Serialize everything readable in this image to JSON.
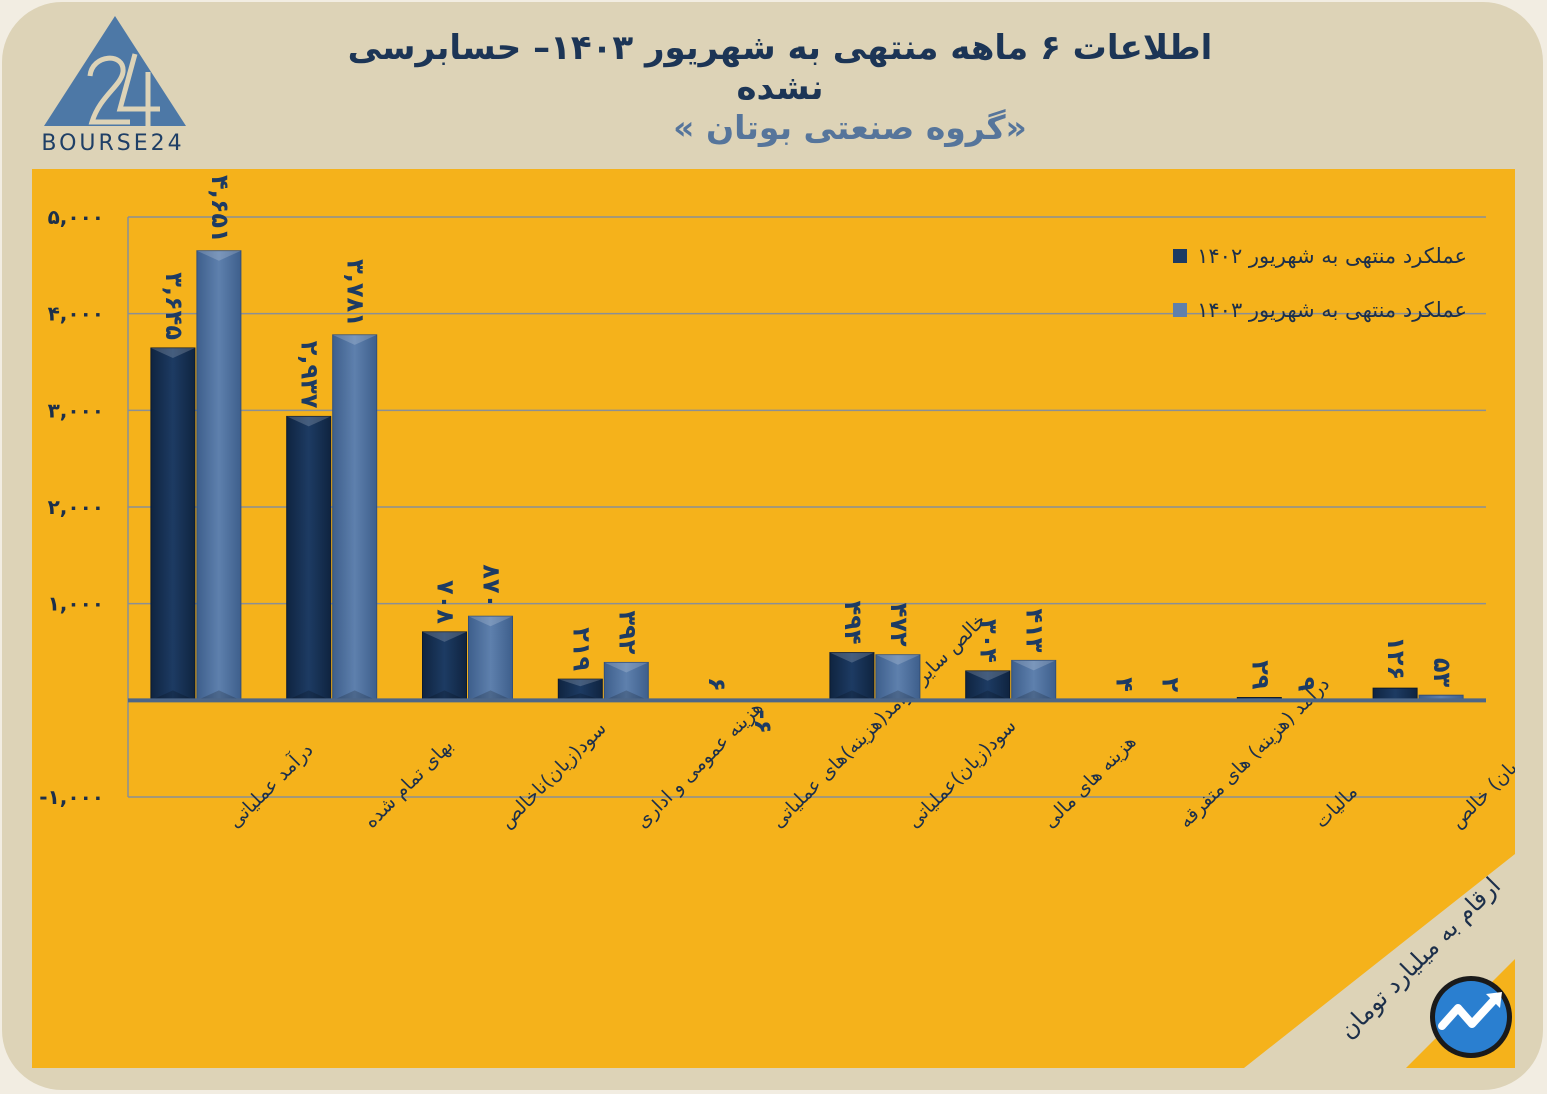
{
  "header": {
    "title": "اطلاعات ۶ ماهه منتهی به شهریور ۱۴۰۳– حسابرسی نشده",
    "subtitle": "«گروه صنعتی بوتان »"
  },
  "logo": {
    "text": "BOURSE24"
  },
  "unit_note": "ارقام به میلیارد تومان",
  "colors": {
    "background": "#ddd3b7",
    "panel": "#f5b21b",
    "series_1402": "#1d3b63",
    "series_1403": "#5e80ad",
    "title": "#1c3556",
    "subtitle": "#56759b"
  },
  "chart_data": {
    "type": "bar",
    "categories": [
      "درآمد عملیاتی",
      "بهای تمام شده",
      "سود(زیان)ناخالص",
      "هزینه عمومی و اداری",
      "خالص سایر درامد(هزینه)های عملیاتی",
      "سود(زیان)عملیاتی",
      "هزینه های مالی",
      "درآمد (هزینه) های متفرقه",
      "مالیات",
      "سود(زیان) خالص"
    ],
    "series": [
      {
        "name": "عملکرد منتهی به شهریور ۱۴۰۲",
        "values": [
          3645,
          2937,
          708,
          219,
          6,
          494,
          304,
          4,
          29,
          126
        ],
        "labels": [
          "۳,۶۴۵",
          "۲,۹۳۷",
          "۷۰۸",
          "۲۱۹",
          "۶",
          "۴۹۴",
          "۳۰۴",
          "۴",
          "۲۹",
          "۱۲۶"
        ]
      },
      {
        "name": "عملکرد منتهی به شهریور ۱۴۰۳",
        "values": [
          4651,
          3781,
          870,
          392,
          -6,
          472,
          413,
          2,
          9,
          53
        ],
        "labels": [
          "۴,۶۵۱",
          "۳,۷۸۱",
          "۸۷۰",
          "۳۹۲",
          "-۶",
          "۴۷۲",
          "۴۱۳",
          "۲",
          "۹",
          "۵۳"
        ]
      }
    ],
    "ylim": [
      -1000,
      5000
    ],
    "yticks": [
      -1000,
      1000,
      2000,
      3000,
      4000,
      5000
    ],
    "ytick_labels": [
      "-۱,۰۰۰",
      "۱,۰۰۰",
      "۲,۰۰۰",
      "۳,۰۰۰",
      "۴,۰۰۰",
      "۵,۰۰۰"
    ],
    "grid": true,
    "legend_position": "top-right"
  }
}
